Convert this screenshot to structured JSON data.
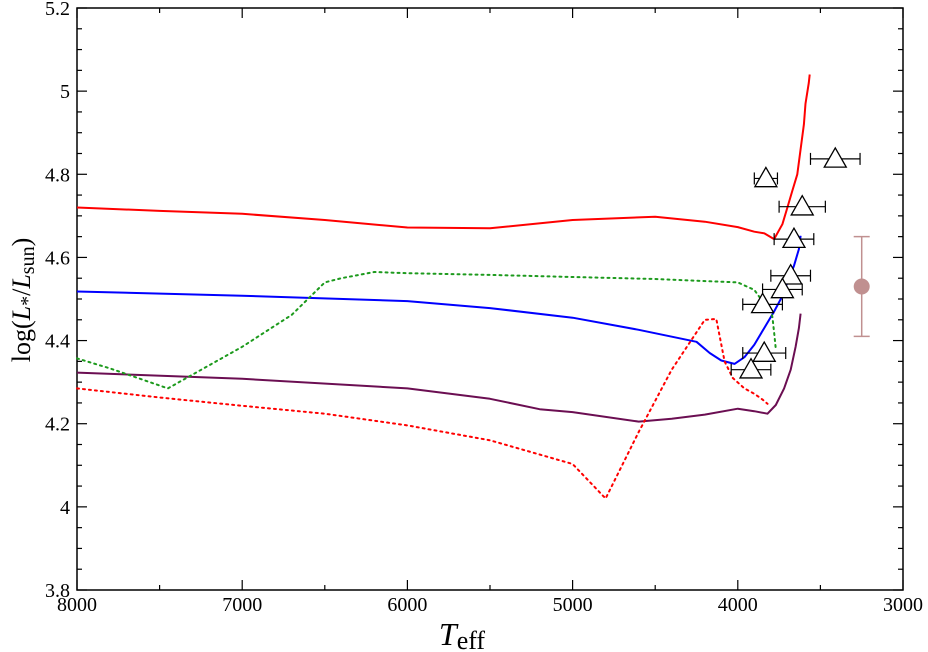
{
  "chart_data": {
    "type": "line",
    "xlabel": {
      "main": "T",
      "sub": "eff"
    },
    "ylabel": {
      "prefix": "log(",
      "L1": "L",
      "sub1": "*",
      "slash": "/",
      "L2": "L",
      "sub2": "sun",
      "suffix": ")"
    },
    "xlim": [
      8000,
      3000
    ],
    "ylim": [
      3.8,
      5.2
    ],
    "x_ticks": [
      8000,
      7000,
      6000,
      5000,
      4000,
      3000
    ],
    "x_tick_labels": [
      "8000",
      "7000",
      "6000",
      "5000",
      "4000",
      "3000"
    ],
    "y_ticks": [
      3.8,
      4.0,
      4.2,
      4.4,
      4.6,
      4.8,
      5.0,
      5.2
    ],
    "y_tick_labels": [
      "3.8",
      "4",
      "4.2",
      "4.4",
      "4.6",
      "4.8",
      "5",
      "5.2"
    ],
    "grid": false,
    "series": [
      {
        "color": "#ff0000",
        "style": "solid",
        "points": [
          [
            8000,
            4.72
          ],
          [
            7500,
            4.712
          ],
          [
            7000,
            4.705
          ],
          [
            6500,
            4.69
          ],
          [
            6000,
            4.672
          ],
          [
            5500,
            4.67
          ],
          [
            5000,
            4.69
          ],
          [
            4500,
            4.698
          ],
          [
            4200,
            4.686
          ],
          [
            4000,
            4.673
          ],
          [
            3900,
            4.662
          ],
          [
            3840,
            4.658
          ],
          [
            3780,
            4.644
          ],
          [
            3730,
            4.68
          ],
          [
            3700,
            4.72
          ],
          [
            3670,
            4.76
          ],
          [
            3640,
            4.8
          ],
          [
            3620,
            4.86
          ],
          [
            3600,
            4.92
          ],
          [
            3590,
            4.97
          ],
          [
            3570,
            5.02
          ],
          [
            3565,
            5.04
          ]
        ]
      },
      {
        "color": "#0000ff",
        "style": "solid",
        "points": [
          [
            8000,
            4.518
          ],
          [
            7000,
            4.508
          ],
          [
            6000,
            4.495
          ],
          [
            5500,
            4.478
          ],
          [
            5000,
            4.455
          ],
          [
            4600,
            4.426
          ],
          [
            4250,
            4.397
          ],
          [
            4170,
            4.37
          ],
          [
            4100,
            4.352
          ],
          [
            4020,
            4.344
          ],
          [
            3960,
            4.36
          ],
          [
            3900,
            4.39
          ],
          [
            3840,
            4.43
          ],
          [
            3780,
            4.47
          ],
          [
            3740,
            4.5
          ],
          [
            3700,
            4.54
          ],
          [
            3660,
            4.58
          ],
          [
            3630,
            4.62
          ],
          [
            3620,
            4.652
          ]
        ]
      },
      {
        "color": "#6b0e52",
        "style": "solid",
        "points": [
          [
            8000,
            4.323
          ],
          [
            7000,
            4.308
          ],
          [
            6000,
            4.285
          ],
          [
            5500,
            4.26
          ],
          [
            5200,
            4.235
          ],
          [
            5000,
            4.228
          ],
          [
            4600,
            4.205
          ],
          [
            4400,
            4.212
          ],
          [
            4200,
            4.222
          ],
          [
            4000,
            4.236
          ],
          [
            3900,
            4.23
          ],
          [
            3820,
            4.224
          ],
          [
            3770,
            4.245
          ],
          [
            3720,
            4.285
          ],
          [
            3680,
            4.33
          ],
          [
            3650,
            4.385
          ],
          [
            3630,
            4.43
          ],
          [
            3620,
            4.465
          ]
        ]
      },
      {
        "color": "#1d9a1d",
        "style": "dotted",
        "points": [
          [
            8000,
            4.357
          ],
          [
            7800,
            4.333
          ],
          [
            7450,
            4.285
          ],
          [
            7000,
            4.385
          ],
          [
            6700,
            4.462
          ],
          [
            6500,
            4.54
          ],
          [
            6400,
            4.55
          ],
          [
            6200,
            4.565
          ],
          [
            6000,
            4.562
          ],
          [
            5500,
            4.558
          ],
          [
            5000,
            4.553
          ],
          [
            4500,
            4.548
          ],
          [
            4000,
            4.54
          ],
          [
            3900,
            4.522
          ],
          [
            3860,
            4.5
          ],
          [
            3840,
            4.49
          ],
          [
            3800,
            4.474
          ],
          [
            3790,
            4.455
          ],
          [
            3780,
            4.42
          ],
          [
            3770,
            4.38
          ]
        ]
      },
      {
        "color": "#ff0000",
        "style": "dotted",
        "points": [
          [
            8000,
            4.285
          ],
          [
            7500,
            4.263
          ],
          [
            7000,
            4.243
          ],
          [
            6500,
            4.224
          ],
          [
            6000,
            4.196
          ],
          [
            5500,
            4.16
          ],
          [
            5000,
            4.103
          ],
          [
            4800,
            4.02
          ],
          [
            4600,
            4.18
          ],
          [
            4400,
            4.33
          ],
          [
            4200,
            4.45
          ],
          [
            4130,
            4.452
          ],
          [
            4080,
            4.35
          ],
          [
            4030,
            4.31
          ],
          [
            3960,
            4.285
          ],
          [
            3900,
            4.272
          ],
          [
            3850,
            4.258
          ],
          [
            3820,
            4.248
          ]
        ]
      }
    ],
    "markers": {
      "shape": "open-triangle",
      "points": [
        {
          "x": 3830,
          "y": 4.79,
          "xerr": 70
        },
        {
          "x": 3410,
          "y": 4.837,
          "xerr": 150
        },
        {
          "x": 3610,
          "y": 4.722,
          "xerr": 140
        },
        {
          "x": 3660,
          "y": 4.644,
          "xerr": 120
        },
        {
          "x": 3680,
          "y": 4.556,
          "xerr": 120
        },
        {
          "x": 3730,
          "y": 4.523,
          "xerr": 120
        },
        {
          "x": 3850,
          "y": 4.487,
          "xerr": 120
        },
        {
          "x": 3840,
          "y": 4.37,
          "xerr": 130
        },
        {
          "x": 3920,
          "y": 4.33,
          "xerr": 120
        }
      ]
    },
    "highlight_point": {
      "x": 3250,
      "y": 4.53,
      "yerr": 0.12,
      "color": "#c09090"
    }
  }
}
